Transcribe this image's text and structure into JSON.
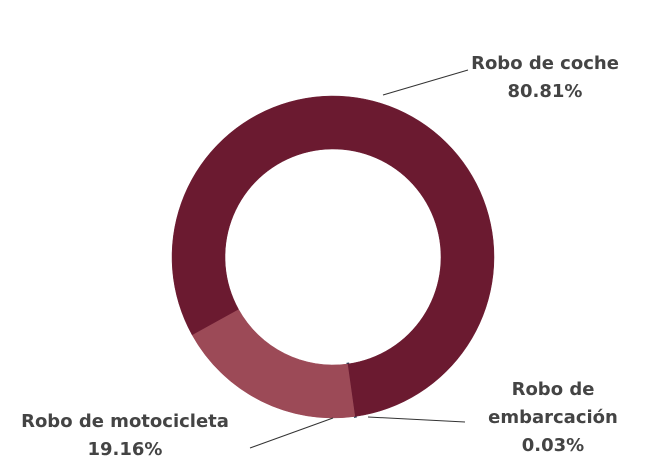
{
  "chart_data": {
    "type": "donut",
    "categories": [
      "Robo de embarcación",
      "Robo de motocicleta",
      "Robo de coche"
    ],
    "values": [
      0.03,
      19.16,
      80.81
    ],
    "value_labels": [
      "0.03%",
      "19.16%",
      "80.81%"
    ],
    "colors": [
      "#1f3a55",
      "#9c4a57",
      "#6b1a30"
    ]
  }
}
